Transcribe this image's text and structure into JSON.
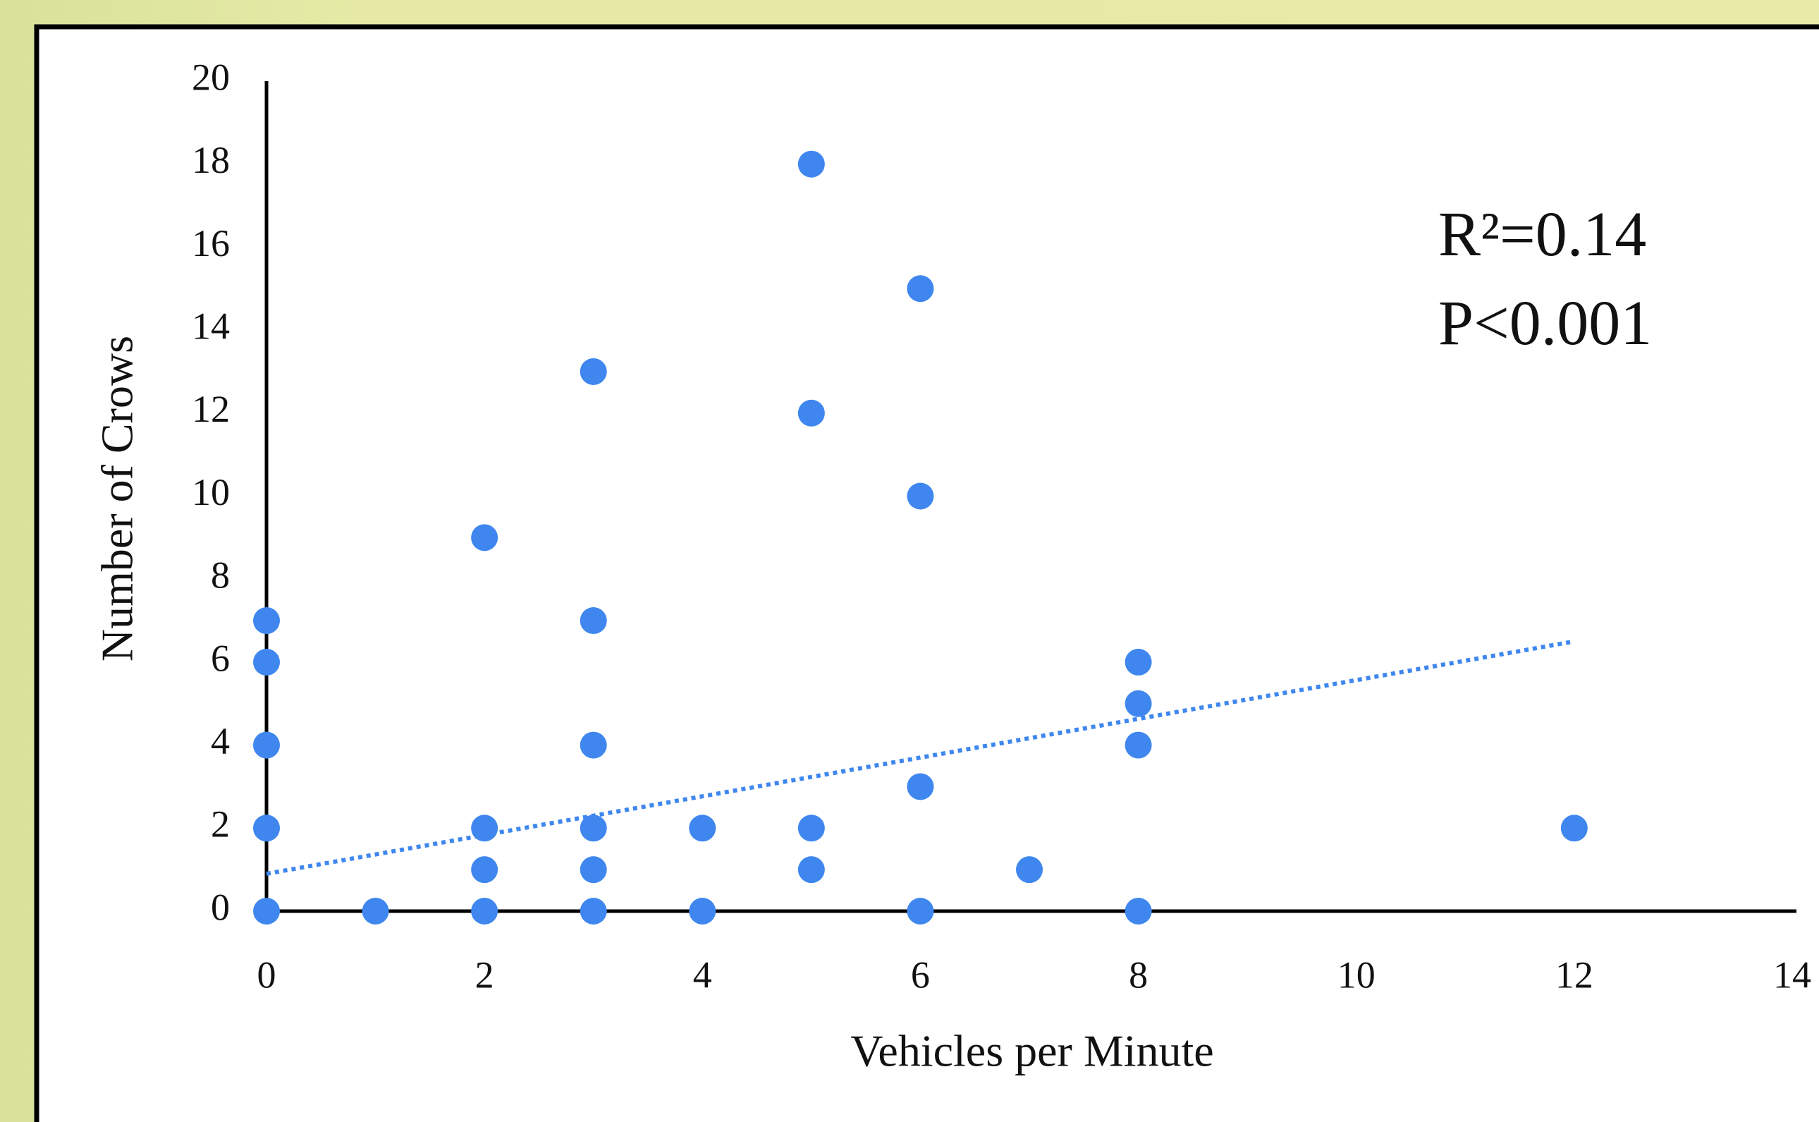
{
  "chart_data": {
    "type": "scatter",
    "x_label": "Vehicles per Minute",
    "y_label": "Number of Crows",
    "annotations": [
      "R²=0.14",
      "P<0.001"
    ],
    "x": [
      0,
      0,
      0,
      0,
      0,
      1,
      2,
      2,
      2,
      2,
      3,
      3,
      3,
      3,
      3,
      3,
      4,
      4,
      5,
      5,
      5,
      5,
      6,
      6,
      6,
      6,
      7,
      8,
      8,
      8,
      8,
      12
    ],
    "values": [
      7,
      6,
      4,
      2,
      0,
      0,
      9,
      2,
      1,
      0,
      13,
      7,
      4,
      2,
      1,
      0,
      2,
      0,
      18,
      12,
      2,
      1,
      15,
      10,
      3,
      0,
      1,
      6,
      5,
      4,
      0,
      2
    ],
    "color": "#3f87ef",
    "trendline": {
      "x": [
        0,
        12
      ],
      "y": [
        0.9,
        6.5
      ],
      "color": "#3f87ef"
    },
    "xlim": [
      0,
      14
    ],
    "ylim": [
      0,
      20
    ],
    "xticks": [
      0,
      2,
      4,
      6,
      8,
      10,
      12,
      14
    ],
    "yticks": [
      0,
      2,
      4,
      6,
      8,
      10,
      12,
      14,
      16,
      18,
      20
    ],
    "grid": false
  }
}
